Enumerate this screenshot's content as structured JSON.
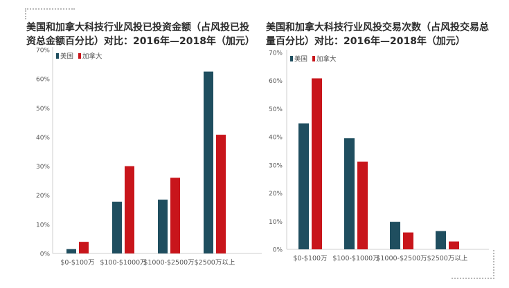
{
  "colors": {
    "usa": "#1f4e5f",
    "canada": "#c8151b",
    "axis": "#cfcfcf",
    "text": "#555555"
  },
  "chart_data": [
    {
      "type": "bar",
      "title": "美国和加拿大科技行业风投已投资金额（占风投已投资总金额百分比）对比：2016年—2018年（加元）",
      "categories": [
        "$0-$100万",
        "$100-$1000万",
        "$1000-$2500万",
        "$2500万以上"
      ],
      "series": [
        {
          "name": "美国",
          "values": [
            1.5,
            17.8,
            18.5,
            62.5
          ]
        },
        {
          "name": "加拿大",
          "values": [
            4,
            30,
            26,
            40.8
          ]
        }
      ],
      "ylim": [
        0,
        70
      ],
      "yticks": [
        "0%",
        "10%",
        "20%",
        "30%",
        "40%",
        "50%",
        "60%",
        "70%"
      ],
      "legend": "top-left",
      "grid": false
    },
    {
      "type": "bar",
      "title": "美国和加拿大科技行业风投交易次数（占风投交易总量百分比）对比：2016年—2018年（加元）",
      "categories": [
        "$0-$100万",
        "$100-$1000万",
        "$1000-$2500万",
        "$2500万以上"
      ],
      "series": [
        {
          "name": "美国",
          "values": [
            44.8,
            39.5,
            9.8,
            6.5
          ]
        },
        {
          "name": "加拿大",
          "values": [
            60.8,
            31.2,
            6,
            2.8
          ]
        }
      ],
      "ylim": [
        0,
        70
      ],
      "yticks": [
        "0%",
        "10%",
        "20%",
        "30%",
        "40%",
        "50%",
        "60%",
        "70%"
      ],
      "legend": "top-left",
      "grid": false
    }
  ]
}
